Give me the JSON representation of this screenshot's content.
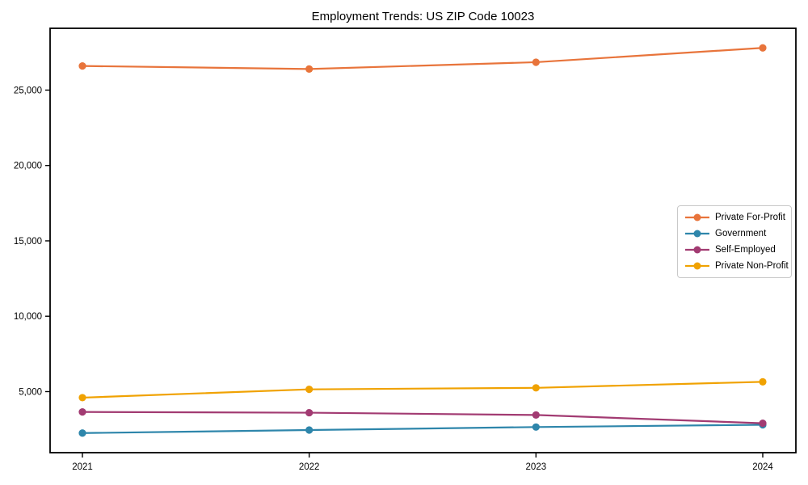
{
  "figure": {
    "background": "#ffffff",
    "border_color": "#000000"
  },
  "chart_data": {
    "type": "line",
    "title": "Employment Trends: US ZIP Code 10023",
    "xlabel": "",
    "ylabel": "",
    "x": [
      2021,
      2022,
      2023,
      2024
    ],
    "x_tick_labels": [
      "2021",
      "2022",
      "2023",
      "2024"
    ],
    "yticks": [
      5000,
      10000,
      15000,
      20000,
      25000
    ],
    "y_tick_labels": [
      "5,000",
      "10,000",
      "15,000",
      "20,000",
      "25,000"
    ],
    "ylim": [
      950,
      29100
    ],
    "grid": false,
    "legend_position": "center-right",
    "marker": "circle",
    "series": [
      {
        "name": "Private For-Profit",
        "color": "#E8743B",
        "values": [
          26600,
          26400,
          26850,
          27800
        ]
      },
      {
        "name": "Government",
        "color": "#2E86AB",
        "values": [
          2250,
          2450,
          2650,
          2800
        ]
      },
      {
        "name": "Self-Employed",
        "color": "#A23B72",
        "values": [
          3650,
          3600,
          3450,
          2900
        ]
      },
      {
        "name": "Private Non-Profit",
        "color": "#F0A202",
        "values": [
          4600,
          5150,
          5250,
          5650
        ]
      }
    ]
  }
}
